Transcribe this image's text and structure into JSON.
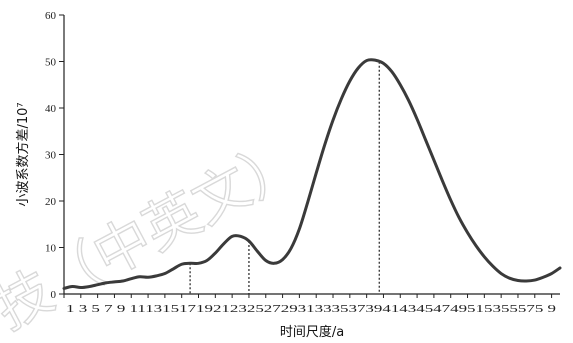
{
  "chart_data": {
    "type": "line",
    "title": "",
    "xlabel": "时间尺度/a",
    "ylabel": "小波系数方差/10⁷",
    "xlim": [
      1,
      60
    ],
    "ylim": [
      0,
      60
    ],
    "y_ticks": [
      0,
      10,
      20,
      30,
      40,
      50,
      60
    ],
    "x_ticks": [
      1,
      3,
      5,
      7,
      9,
      11,
      13,
      15,
      17,
      19,
      21,
      23,
      25,
      27,
      29,
      31,
      33,
      35,
      37,
      39,
      41,
      43,
      45,
      47,
      49,
      51,
      53,
      55,
      57,
      59
    ],
    "x_tick_labels": "1 3 5 7 9 1113151719212325272931333537394143454749515355575 9",
    "x": [
      1,
      2,
      3,
      4,
      5,
      6,
      7,
      8,
      9,
      10,
      11,
      12,
      13,
      14,
      15,
      16,
      17,
      18,
      19,
      20,
      21,
      22,
      23,
      24,
      25,
      26,
      27,
      28,
      29,
      30,
      31,
      32,
      33,
      34,
      35,
      36,
      37,
      38,
      39,
      40,
      41,
      42,
      43,
      44,
      45,
      46,
      47,
      48,
      49,
      50,
      51,
      52,
      53,
      54,
      55,
      56,
      57,
      58,
      59,
      60
    ],
    "series": [
      {
        "values": [
          1.2,
          1.6,
          1.4,
          1.6,
          2.0,
          2.4,
          2.6,
          2.8,
          3.3,
          3.7,
          3.6,
          3.9,
          4.4,
          5.4,
          6.4,
          6.6,
          6.6,
          7.2,
          8.8,
          10.8,
          12.4,
          12.4,
          11.4,
          9.2,
          7.2,
          6.6,
          7.4,
          9.8,
          14.0,
          19.8,
          26.0,
          32.0,
          37.4,
          42.0,
          45.8,
          48.6,
          50.2,
          50.3,
          49.6,
          47.8,
          45.0,
          41.6,
          37.6,
          33.2,
          28.8,
          24.4,
          20.2,
          16.4,
          13.2,
          10.4,
          8.0,
          6.0,
          4.4,
          3.4,
          2.9,
          2.8,
          3.0,
          3.6,
          4.4,
          5.6
        ]
      }
    ],
    "reference_lines_x": [
      16,
      23,
      38.5
    ],
    "colors": {
      "line": "#3a3a3a",
      "axis": "#222222",
      "reference": "#222222",
      "watermark": "#d9d9d9"
    },
    "grid": false,
    "legend": "none"
  },
  "watermark": {
    "text": "技（中英文）"
  }
}
